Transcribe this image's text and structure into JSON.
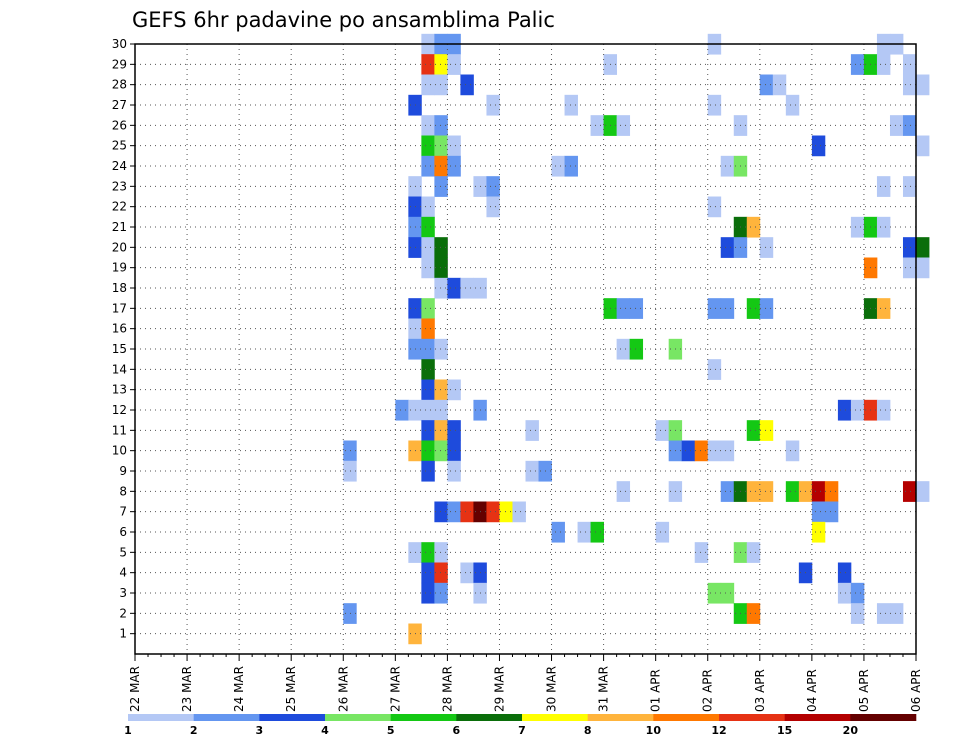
{
  "chart_data": {
    "type": "heatmap",
    "title": "GEFS 6hr padavine po ansamblima Palic",
    "xlabel": "",
    "ylabel": "",
    "x_ticks": [
      "22 MAR",
      "23 MAR",
      "24 MAR",
      "25 MAR",
      "26 MAR",
      "27 MAR",
      "28 MAR",
      "29 MAR",
      "30 MAR",
      "31 MAR",
      "01 APR",
      "02 APR",
      "03 APR",
      "04 APR",
      "05 APR",
      "06 APR"
    ],
    "y_ticks": [
      1,
      2,
      3,
      4,
      5,
      6,
      7,
      8,
      9,
      10,
      11,
      12,
      13,
      14,
      15,
      16,
      17,
      18,
      19,
      20,
      21,
      22,
      23,
      24,
      25,
      26,
      27,
      28,
      29,
      30
    ],
    "ylim": [
      0,
      30
    ],
    "x_step": "6hr",
    "steps_per_day": 4,
    "grid": true,
    "legend_position": "bottom",
    "legend_levels": [
      {
        "label": "1",
        "color": "#b4c8f5"
      },
      {
        "label": "2",
        "color": "#6496f0"
      },
      {
        "label": "3",
        "color": "#1e4bdc"
      },
      {
        "label": "4",
        "color": "#78e664"
      },
      {
        "label": "5",
        "color": "#14c814"
      },
      {
        "label": "6",
        "color": "#0a6e0a"
      },
      {
        "label": "7",
        "color": "#ffff00"
      },
      {
        "label": "8",
        "color": "#ffb43c"
      },
      {
        "label": "10",
        "color": "#ff7800"
      },
      {
        "label": "12",
        "color": "#e63214"
      },
      {
        "label": "15",
        "color": "#b40000"
      },
      {
        "label": "20",
        "color": "#640000"
      }
    ],
    "cells": [
      {
        "member": 30,
        "step": 22,
        "level": 0
      },
      {
        "member": 30,
        "step": 23,
        "level": 1
      },
      {
        "member": 30,
        "step": 24,
        "level": 1
      },
      {
        "member": 30,
        "step": 44,
        "level": 0
      },
      {
        "member": 30,
        "step": 57,
        "level": 0
      },
      {
        "member": 30,
        "step": 58,
        "level": 0
      },
      {
        "member": 29,
        "step": 22,
        "level": 9
      },
      {
        "member": 29,
        "step": 23,
        "level": 6
      },
      {
        "member": 29,
        "step": 24,
        "level": 0
      },
      {
        "member": 29,
        "step": 36,
        "level": 0
      },
      {
        "member": 29,
        "step": 55,
        "level": 1
      },
      {
        "member": 29,
        "step": 56,
        "level": 4
      },
      {
        "member": 29,
        "step": 57,
        "level": 0
      },
      {
        "member": 29,
        "step": 59,
        "level": 0
      },
      {
        "member": 28,
        "step": 22,
        "level": 0
      },
      {
        "member": 28,
        "step": 23,
        "level": 0
      },
      {
        "member": 28,
        "step": 25,
        "level": 2
      },
      {
        "member": 28,
        "step": 48,
        "level": 1
      },
      {
        "member": 28,
        "step": 49,
        "level": 0
      },
      {
        "member": 28,
        "step": 59,
        "level": 0
      },
      {
        "member": 28,
        "step": 60,
        "level": 0
      },
      {
        "member": 27,
        "step": 21,
        "level": 2
      },
      {
        "member": 27,
        "step": 27,
        "level": 0
      },
      {
        "member": 27,
        "step": 33,
        "level": 0
      },
      {
        "member": 27,
        "step": 44,
        "level": 0
      },
      {
        "member": 27,
        "step": 50,
        "level": 0
      },
      {
        "member": 26,
        "step": 22,
        "level": 0
      },
      {
        "member": 26,
        "step": 23,
        "level": 1
      },
      {
        "member": 26,
        "step": 35,
        "level": 0
      },
      {
        "member": 26,
        "step": 36,
        "level": 4
      },
      {
        "member": 26,
        "step": 37,
        "level": 0
      },
      {
        "member": 26,
        "step": 46,
        "level": 0
      },
      {
        "member": 26,
        "step": 58,
        "level": 0
      },
      {
        "member": 26,
        "step": 59,
        "level": 1
      },
      {
        "member": 25,
        "step": 22,
        "level": 4
      },
      {
        "member": 25,
        "step": 23,
        "level": 3
      },
      {
        "member": 25,
        "step": 24,
        "level": 0
      },
      {
        "member": 25,
        "step": 52,
        "level": 2
      },
      {
        "member": 25,
        "step": 60,
        "level": 0
      },
      {
        "member": 24,
        "step": 22,
        "level": 1
      },
      {
        "member": 24,
        "step": 23,
        "level": 8
      },
      {
        "member": 24,
        "step": 24,
        "level": 1
      },
      {
        "member": 24,
        "step": 32,
        "level": 0
      },
      {
        "member": 24,
        "step": 33,
        "level": 1
      },
      {
        "member": 24,
        "step": 45,
        "level": 0
      },
      {
        "member": 24,
        "step": 46,
        "level": 3
      },
      {
        "member": 23,
        "step": 21,
        "level": 0
      },
      {
        "member": 23,
        "step": 23,
        "level": 1
      },
      {
        "member": 23,
        "step": 26,
        "level": 0
      },
      {
        "member": 23,
        "step": 27,
        "level": 1
      },
      {
        "member": 23,
        "step": 57,
        "level": 0
      },
      {
        "member": 23,
        "step": 59,
        "level": 0
      },
      {
        "member": 22,
        "step": 21,
        "level": 2
      },
      {
        "member": 22,
        "step": 22,
        "level": 0
      },
      {
        "member": 22,
        "step": 27,
        "level": 0
      },
      {
        "member": 22,
        "step": 44,
        "level": 0
      },
      {
        "member": 21,
        "step": 21,
        "level": 1
      },
      {
        "member": 21,
        "step": 22,
        "level": 4
      },
      {
        "member": 21,
        "step": 46,
        "level": 5
      },
      {
        "member": 21,
        "step": 47,
        "level": 7
      },
      {
        "member": 21,
        "step": 55,
        "level": 0
      },
      {
        "member": 21,
        "step": 56,
        "level": 4
      },
      {
        "member": 21,
        "step": 57,
        "level": 0
      },
      {
        "member": 20,
        "step": 21,
        "level": 2
      },
      {
        "member": 20,
        "step": 22,
        "level": 0
      },
      {
        "member": 20,
        "step": 23,
        "level": 5
      },
      {
        "member": 20,
        "step": 45,
        "level": 2
      },
      {
        "member": 20,
        "step": 46,
        "level": 1
      },
      {
        "member": 20,
        "step": 48,
        "level": 0
      },
      {
        "member": 20,
        "step": 59,
        "level": 2
      },
      {
        "member": 20,
        "step": 60,
        "level": 5
      },
      {
        "member": 19,
        "step": 22,
        "level": 0
      },
      {
        "member": 19,
        "step": 23,
        "level": 5
      },
      {
        "member": 19,
        "step": 56,
        "level": 8
      },
      {
        "member": 19,
        "step": 59,
        "level": 0
      },
      {
        "member": 19,
        "step": 60,
        "level": 0
      },
      {
        "member": 18,
        "step": 23,
        "level": 0
      },
      {
        "member": 18,
        "step": 24,
        "level": 2
      },
      {
        "member": 18,
        "step": 25,
        "level": 0
      },
      {
        "member": 18,
        "step": 26,
        "level": 0
      },
      {
        "member": 17,
        "step": 21,
        "level": 2
      },
      {
        "member": 17,
        "step": 22,
        "level": 3
      },
      {
        "member": 17,
        "step": 36,
        "level": 4
      },
      {
        "member": 17,
        "step": 37,
        "level": 1
      },
      {
        "member": 17,
        "step": 38,
        "level": 1
      },
      {
        "member": 17,
        "step": 44,
        "level": 1
      },
      {
        "member": 17,
        "step": 45,
        "level": 1
      },
      {
        "member": 17,
        "step": 47,
        "level": 4
      },
      {
        "member": 17,
        "step": 48,
        "level": 1
      },
      {
        "member": 17,
        "step": 56,
        "level": 5
      },
      {
        "member": 17,
        "step": 57,
        "level": 7
      },
      {
        "member": 16,
        "step": 21,
        "level": 0
      },
      {
        "member": 16,
        "step": 22,
        "level": 8
      },
      {
        "member": 15,
        "step": 21,
        "level": 1
      },
      {
        "member": 15,
        "step": 22,
        "level": 1
      },
      {
        "member": 15,
        "step": 23,
        "level": 0
      },
      {
        "member": 15,
        "step": 37,
        "level": 0
      },
      {
        "member": 15,
        "step": 38,
        "level": 4
      },
      {
        "member": 15,
        "step": 41,
        "level": 3
      },
      {
        "member": 14,
        "step": 22,
        "level": 5
      },
      {
        "member": 14,
        "step": 44,
        "level": 0
      },
      {
        "member": 13,
        "step": 22,
        "level": 2
      },
      {
        "member": 13,
        "step": 23,
        "level": 7
      },
      {
        "member": 13,
        "step": 24,
        "level": 0
      },
      {
        "member": 12,
        "step": 20,
        "level": 1
      },
      {
        "member": 12,
        "step": 21,
        "level": 0
      },
      {
        "member": 12,
        "step": 22,
        "level": 0
      },
      {
        "member": 12,
        "step": 23,
        "level": 0
      },
      {
        "member": 12,
        "step": 26,
        "level": 1
      },
      {
        "member": 12,
        "step": 54,
        "level": 2
      },
      {
        "member": 12,
        "step": 55,
        "level": 0
      },
      {
        "member": 12,
        "step": 56,
        "level": 9
      },
      {
        "member": 12,
        "step": 57,
        "level": 0
      },
      {
        "member": 11,
        "step": 22,
        "level": 2
      },
      {
        "member": 11,
        "step": 23,
        "level": 7
      },
      {
        "member": 11,
        "step": 24,
        "level": 2
      },
      {
        "member": 11,
        "step": 30,
        "level": 0
      },
      {
        "member": 11,
        "step": 40,
        "level": 0
      },
      {
        "member": 11,
        "step": 41,
        "level": 3
      },
      {
        "member": 11,
        "step": 47,
        "level": 4
      },
      {
        "member": 11,
        "step": 48,
        "level": 6
      },
      {
        "member": 10,
        "step": 16,
        "level": 1
      },
      {
        "member": 10,
        "step": 21,
        "level": 7
      },
      {
        "member": 10,
        "step": 22,
        "level": 4
      },
      {
        "member": 10,
        "step": 23,
        "level": 3
      },
      {
        "member": 10,
        "step": 24,
        "level": 2
      },
      {
        "member": 10,
        "step": 41,
        "level": 1
      },
      {
        "member": 10,
        "step": 42,
        "level": 2
      },
      {
        "member": 10,
        "step": 43,
        "level": 8
      },
      {
        "member": 10,
        "step": 44,
        "level": 0
      },
      {
        "member": 10,
        "step": 45,
        "level": 0
      },
      {
        "member": 10,
        "step": 50,
        "level": 0
      },
      {
        "member": 9,
        "step": 16,
        "level": 0
      },
      {
        "member": 9,
        "step": 22,
        "level": 2
      },
      {
        "member": 9,
        "step": 24,
        "level": 0
      },
      {
        "member": 9,
        "step": 30,
        "level": 0
      },
      {
        "member": 9,
        "step": 31,
        "level": 1
      },
      {
        "member": 8,
        "step": 37,
        "level": 0
      },
      {
        "member": 8,
        "step": 41,
        "level": 0
      },
      {
        "member": 8,
        "step": 45,
        "level": 1
      },
      {
        "member": 8,
        "step": 46,
        "level": 5
      },
      {
        "member": 8,
        "step": 47,
        "level": 7
      },
      {
        "member": 8,
        "step": 48,
        "level": 7
      },
      {
        "member": 8,
        "step": 50,
        "level": 4
      },
      {
        "member": 8,
        "step": 51,
        "level": 7
      },
      {
        "member": 8,
        "step": 52,
        "level": 10
      },
      {
        "member": 8,
        "step": 53,
        "level": 8
      },
      {
        "member": 8,
        "step": 59,
        "level": 10
      },
      {
        "member": 8,
        "step": 60,
        "level": 0
      },
      {
        "member": 7,
        "step": 23,
        "level": 2
      },
      {
        "member": 7,
        "step": 24,
        "level": 1
      },
      {
        "member": 7,
        "step": 25,
        "level": 9
      },
      {
        "member": 7,
        "step": 26,
        "level": 11
      },
      {
        "member": 7,
        "step": 27,
        "level": 9
      },
      {
        "member": 7,
        "step": 28,
        "level": 6
      },
      {
        "member": 7,
        "step": 29,
        "level": 0
      },
      {
        "member": 7,
        "step": 52,
        "level": 1
      },
      {
        "member": 7,
        "step": 53,
        "level": 1
      },
      {
        "member": 6,
        "step": 32,
        "level": 1
      },
      {
        "member": 6,
        "step": 34,
        "level": 0
      },
      {
        "member": 6,
        "step": 35,
        "level": 4
      },
      {
        "member": 6,
        "step": 40,
        "level": 0
      },
      {
        "member": 6,
        "step": 52,
        "level": 6
      },
      {
        "member": 5,
        "step": 21,
        "level": 0
      },
      {
        "member": 5,
        "step": 22,
        "level": 4
      },
      {
        "member": 5,
        "step": 23,
        "level": 0
      },
      {
        "member": 5,
        "step": 43,
        "level": 0
      },
      {
        "member": 5,
        "step": 46,
        "level": 3
      },
      {
        "member": 5,
        "step": 47,
        "level": 0
      },
      {
        "member": 4,
        "step": 22,
        "level": 2
      },
      {
        "member": 4,
        "step": 23,
        "level": 9
      },
      {
        "member": 4,
        "step": 25,
        "level": 0
      },
      {
        "member": 4,
        "step": 26,
        "level": 2
      },
      {
        "member": 4,
        "step": 51,
        "level": 2
      },
      {
        "member": 4,
        "step": 54,
        "level": 2
      },
      {
        "member": 3,
        "step": 22,
        "level": 2
      },
      {
        "member": 3,
        "step": 23,
        "level": 1
      },
      {
        "member": 3,
        "step": 26,
        "level": 0
      },
      {
        "member": 3,
        "step": 44,
        "level": 3
      },
      {
        "member": 3,
        "step": 45,
        "level": 3
      },
      {
        "member": 3,
        "step": 54,
        "level": 0
      },
      {
        "member": 3,
        "step": 55,
        "level": 1
      },
      {
        "member": 2,
        "step": 16,
        "level": 1
      },
      {
        "member": 2,
        "step": 46,
        "level": 4
      },
      {
        "member": 2,
        "step": 47,
        "level": 8
      },
      {
        "member": 2,
        "step": 55,
        "level": 0
      },
      {
        "member": 2,
        "step": 57,
        "level": 0
      },
      {
        "member": 2,
        "step": 58,
        "level": 0
      },
      {
        "member": 1,
        "step": 21,
        "level": 7
      }
    ]
  }
}
